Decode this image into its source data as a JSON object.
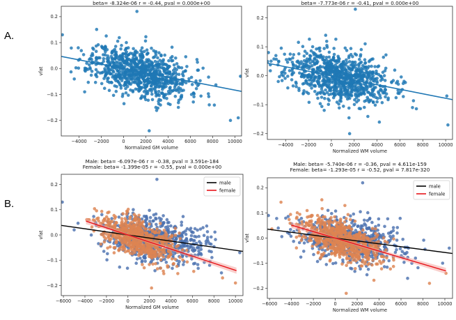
{
  "panel_labels": {
    "a": "A.",
    "b": "B."
  },
  "colors": {
    "all": "#1f77b4",
    "male": "#4c72b0",
    "female": "#dd8452",
    "male_line": "#000000",
    "female_line": "#e8141a",
    "female_band": "#f4a7a3"
  },
  "chart_data": [
    {
      "type": "scatter",
      "id": "a-gm",
      "title": "beta= -8.324e-06 r = -0.44, pval = 0.000e+00",
      "xlabel": "Normalized GM volume",
      "ylabel": "vfat",
      "xlim": [
        -5600,
        10600
      ],
      "ylim": [
        -0.26,
        0.24
      ],
      "xticks": [
        -4000,
        -2000,
        0,
        2000,
        4000,
        6000,
        8000,
        10000
      ],
      "xtick_labels": [
        "−4000",
        "−2000",
        "0",
        "2000",
        "4000",
        "6000",
        "8000",
        "10000"
      ],
      "yticks": [
        -0.2,
        -0.1,
        0.0,
        0.1,
        0.2
      ],
      "ytick_labels": [
        "−0.2",
        "−0.1",
        "0.0",
        "0.1",
        "0.2"
      ],
      "cloud": {
        "x_mean": 1500,
        "x_sd": 2200,
        "y_sd": 0.045,
        "slope": -8.324e-06,
        "intercept": 0.0,
        "n": 900,
        "seed": 11
      },
      "outliers": [
        [
          -5500,
          0.13
        ],
        [
          1200,
          0.22
        ],
        [
          2300,
          -0.24
        ],
        [
          9600,
          -0.2
        ],
        [
          10300,
          -0.19
        ],
        [
          10500,
          -0.03
        ],
        [
          2900,
          -0.15
        ],
        [
          -3500,
          -0.09
        ],
        [
          7700,
          -0.14
        ],
        [
          6100,
          -0.1
        ]
      ],
      "fits": [
        {
          "series": "all",
          "slope": -8.324e-06,
          "intercept": 0.0,
          "x": [
            -5600,
            10600
          ]
        }
      ]
    },
    {
      "type": "scatter",
      "id": "a-wm",
      "title": "beta= -7.773e-06 r = -0.41, pval = 0.000e+00",
      "xlabel": "Normalized WM volume",
      "ylabel": "vfat",
      "xlim": [
        -5600,
        10600
      ],
      "ylim": [
        -0.22,
        0.24
      ],
      "xticks": [
        -4000,
        -2000,
        0,
        2000,
        4000,
        6000,
        8000,
        10000
      ],
      "xtick_labels": [
        "−4000",
        "−2000",
        "0",
        "2000",
        "4000",
        "6000",
        "8000",
        "10000"
      ],
      "yticks": [
        -0.2,
        -0.1,
        0.0,
        0.1,
        0.2
      ],
      "ytick_labels": [
        "−0.2",
        "−0.1",
        "0.0",
        "0.1",
        "0.2"
      ],
      "cloud": {
        "x_mean": 500,
        "x_sd": 2300,
        "y_sd": 0.042,
        "slope": -7.773e-06,
        "intercept": 0.0,
        "n": 900,
        "seed": 23
      },
      "outliers": [
        [
          -5500,
          0.08
        ],
        [
          2100,
          0.23
        ],
        [
          1600,
          -0.2
        ],
        [
          10200,
          -0.17
        ],
        [
          10100,
          -0.07
        ],
        [
          7100,
          -0.11
        ],
        [
          -4600,
          0.05
        ],
        [
          4200,
          -0.16
        ]
      ],
      "fits": [
        {
          "series": "all",
          "slope": -7.773e-06,
          "intercept": 0.0,
          "x": [
            -5600,
            10600
          ]
        }
      ]
    },
    {
      "type": "scatter",
      "id": "b-gm",
      "title_lines": [
        "Male: beta= -6.097e-06 r = -0.38, pval = 3.591e-184",
        "Female: beta= -1.399e-05 r = -0.55, pval = 0.000e+00"
      ],
      "xlabel": "Normalized GM volume",
      "ylabel": "vfat",
      "xlim": [
        -6200,
        10700
      ],
      "ylim": [
        -0.24,
        0.24
      ],
      "xticks": [
        -6000,
        -4000,
        -2000,
        0,
        2000,
        4000,
        6000,
        8000,
        10000
      ],
      "xtick_labels": [
        "−6000",
        "−4000",
        "−2000",
        "0",
        "2000",
        "4000",
        "6000",
        "8000",
        "10000"
      ],
      "yticks": [
        -0.2,
        -0.1,
        0.0,
        0.1,
        0.2
      ],
      "ytick_labels": [
        "−0.2",
        "−0.1",
        "0.0",
        "0.1",
        "0.2"
      ],
      "legend": [
        {
          "series": "male",
          "label": "male"
        },
        {
          "series": "female",
          "label": "female"
        }
      ],
      "legend_position": "top-right",
      "clouds": [
        {
          "series": "male",
          "x_mean": 2500,
          "x_sd": 2300,
          "y_sd": 0.045,
          "slope": -6.097e-06,
          "intercept": 0.0,
          "n": 650,
          "seed": 37
        },
        {
          "series": "female",
          "x_mean": 1000,
          "x_sd": 1800,
          "y_sd": 0.038,
          "slope": -1.399e-05,
          "intercept": 0.0,
          "n": 650,
          "seed": 41
        }
      ],
      "outliers": [
        {
          "series": "male",
          "points": [
            [
              -6100,
              0.13
            ],
            [
              2700,
              0.22
            ],
            [
              8700,
              -0.15
            ],
            [
              7600,
              -0.12
            ],
            [
              10400,
              -0.07
            ],
            [
              -5000,
              0.02
            ]
          ]
        },
        {
          "series": "female",
          "points": [
            [
              10000,
              -0.19
            ],
            [
              2200,
              -0.21
            ],
            [
              8800,
              -0.17
            ],
            [
              -3600,
              0.06
            ]
          ]
        }
      ],
      "fits": [
        {
          "series": "male_line",
          "slope": -6.097e-06,
          "intercept": 0.0,
          "x": [
            -6200,
            10700
          ]
        },
        {
          "series": "female_line",
          "slope": -1.399e-05,
          "intercept": 0.0,
          "x": [
            -3900,
            10100
          ],
          "band": true
        }
      ]
    },
    {
      "type": "scatter",
      "id": "b-wm",
      "title_lines": [
        "Male: beta= -5.740e-06 r = -0.36, pval = 4.611e-159",
        "Female: beta= -1.293e-05 r = -0.52, pval = 7.817e-320"
      ],
      "xlabel": "Normalized WM volume",
      "ylabel": "vfat",
      "xlim": [
        -6200,
        10700
      ],
      "ylim": [
        -0.24,
        0.24
      ],
      "xticks": [
        -6000,
        -4000,
        -2000,
        0,
        2000,
        4000,
        6000,
        8000,
        10000
      ],
      "xtick_labels": [
        "−6000",
        "−4000",
        "−2000",
        "0",
        "2000",
        "4000",
        "6000",
        "8000",
        "10000"
      ],
      "yticks": [
        -0.2,
        -0.1,
        0.0,
        0.1,
        0.2
      ],
      "ytick_labels": [
        "−0.2",
        "−0.1",
        "0.0",
        "0.1",
        "0.2"
      ],
      "legend": [
        {
          "series": "male",
          "label": "male"
        },
        {
          "series": "female",
          "label": "female"
        }
      ],
      "legend_position": "top-right",
      "clouds": [
        {
          "series": "male",
          "x_mean": 1500,
          "x_sd": 2400,
          "y_sd": 0.043,
          "slope": -5.74e-06,
          "intercept": 0.0,
          "n": 650,
          "seed": 53
        },
        {
          "series": "female",
          "x_mean": 500,
          "x_sd": 1900,
          "y_sd": 0.037,
          "slope": -1.293e-05,
          "intercept": 0.0,
          "n": 650,
          "seed": 59
        }
      ],
      "outliers": [
        {
          "series": "male",
          "points": [
            [
              -6100,
              0.09
            ],
            [
              2500,
              0.22
            ],
            [
              10400,
              -0.04
            ],
            [
              9800,
              -0.1
            ],
            [
              6600,
              -0.16
            ],
            [
              -5200,
              0.04
            ]
          ]
        },
        {
          "series": "female",
          "points": [
            [
              1000,
              -0.22
            ],
            [
              8600,
              -0.18
            ],
            [
              10100,
              -0.14
            ],
            [
              -3900,
              0.05
            ]
          ]
        }
      ],
      "fits": [
        {
          "series": "male_line",
          "slope": -5.74e-06,
          "intercept": 0.0,
          "x": [
            -6200,
            10700
          ]
        },
        {
          "series": "female_line",
          "slope": -1.293e-05,
          "intercept": 0.0,
          "x": [
            -4000,
            10100
          ],
          "band": true
        }
      ]
    }
  ]
}
